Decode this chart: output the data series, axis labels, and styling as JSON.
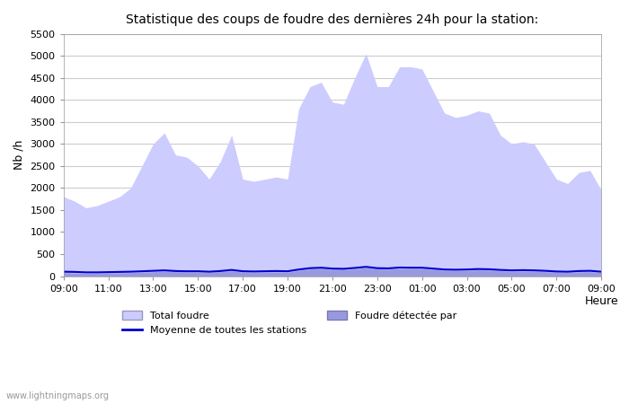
{
  "title": "Statistique des coups de foudre des dernières 24h pour la station:",
  "xlabel": "Heure",
  "ylabel": "Nb /h",
  "xlim": [
    0,
    24
  ],
  "ylim": [
    0,
    5500
  ],
  "yticks": [
    0,
    500,
    1000,
    1500,
    2000,
    2500,
    3000,
    3500,
    4000,
    4500,
    5000,
    5500
  ],
  "xtick_labels": [
    "09:00",
    "11:00",
    "13:00",
    "15:00",
    "17:00",
    "19:00",
    "21:00",
    "23:00",
    "01:00",
    "03:00",
    "05:00",
    "07:00",
    "09:00"
  ],
  "xtick_positions": [
    0,
    2,
    4,
    6,
    8,
    10,
    12,
    14,
    16,
    18,
    20,
    22,
    24
  ],
  "fill_color_light": "#ccccff",
  "fill_color_dark": "#aaaaee",
  "line_color": "#0000cc",
  "background_color": "#ffffff",
  "watermark": "www.lightningmaps.org",
  "legend_items": [
    "Total foudre",
    "Moyenne de toutes les stations",
    "Foudre détectée par"
  ],
  "total_foudre_x": [
    0,
    0.5,
    1,
    1.5,
    2,
    2.5,
    3,
    3.5,
    4,
    4.5,
    5,
    5.5,
    6,
    6.5,
    7,
    7.5,
    8,
    8.5,
    9,
    9.5,
    10,
    10.5,
    11,
    11.5,
    12,
    12.5,
    13,
    13.5,
    14,
    14.5,
    15,
    15.5,
    16,
    16.5,
    17,
    17.5,
    18,
    18.5,
    19,
    19.5,
    20,
    20.5,
    21,
    21.5,
    22,
    22.5,
    23,
    23.5,
    24
  ],
  "total_foudre_y": [
    1800,
    1700,
    1550,
    1600,
    1700,
    1800,
    2000,
    2500,
    3000,
    3250,
    2750,
    2700,
    2500,
    2200,
    2600,
    3200,
    2200,
    2150,
    2200,
    2250,
    2200,
    3800,
    4300,
    4400,
    3950,
    3900,
    4500,
    5050,
    4300,
    4300,
    4750,
    4750,
    4700,
    4200,
    3700,
    3600,
    3650,
    3750,
    3700,
    3200,
    3000,
    3050,
    3000,
    2600,
    2200,
    2100,
    2350,
    2400,
    1950
  ],
  "foudre_detectee_x": [
    0,
    0.5,
    1,
    1.5,
    2,
    2.5,
    3,
    3.5,
    4,
    4.5,
    5,
    5.5,
    6,
    6.5,
    7,
    7.5,
    8,
    8.5,
    9,
    9.5,
    10,
    10.5,
    11,
    11.5,
    12,
    12.5,
    13,
    13.5,
    14,
    14.5,
    15,
    15.5,
    16,
    16.5,
    17,
    17.5,
    18,
    18.5,
    19,
    19.5,
    20,
    20.5,
    21,
    21.5,
    22,
    22.5,
    23,
    23.5,
    24
  ],
  "foudre_detectee_y": [
    80,
    70,
    60,
    65,
    70,
    75,
    80,
    90,
    100,
    110,
    100,
    95,
    90,
    85,
    100,
    120,
    90,
    85,
    90,
    95,
    90,
    130,
    160,
    170,
    150,
    145,
    160,
    190,
    160,
    155,
    170,
    165,
    165,
    150,
    130,
    125,
    130,
    140,
    135,
    120,
    110,
    115,
    110,
    100,
    90,
    85,
    95,
    100,
    80
  ],
  "moyenne_x": [
    0,
    0.5,
    1,
    1.5,
    2,
    2.5,
    3,
    3.5,
    4,
    4.5,
    5,
    5.5,
    6,
    6.5,
    7,
    7.5,
    8,
    8.5,
    9,
    9.5,
    10,
    10.5,
    11,
    11.5,
    12,
    12.5,
    13,
    13.5,
    14,
    14.5,
    15,
    15.5,
    16,
    16.5,
    17,
    17.5,
    18,
    18.5,
    19,
    19.5,
    20,
    20.5,
    21,
    21.5,
    22,
    22.5,
    23,
    23.5,
    24
  ],
  "moyenne_y": [
    100,
    95,
    85,
    85,
    90,
    95,
    100,
    110,
    120,
    130,
    115,
    110,
    110,
    100,
    115,
    140,
    110,
    105,
    110,
    115,
    110,
    150,
    180,
    190,
    170,
    165,
    185,
    210,
    180,
    175,
    195,
    190,
    190,
    170,
    150,
    145,
    150,
    160,
    155,
    140,
    130,
    135,
    130,
    120,
    105,
    100,
    115,
    120,
    100
  ]
}
